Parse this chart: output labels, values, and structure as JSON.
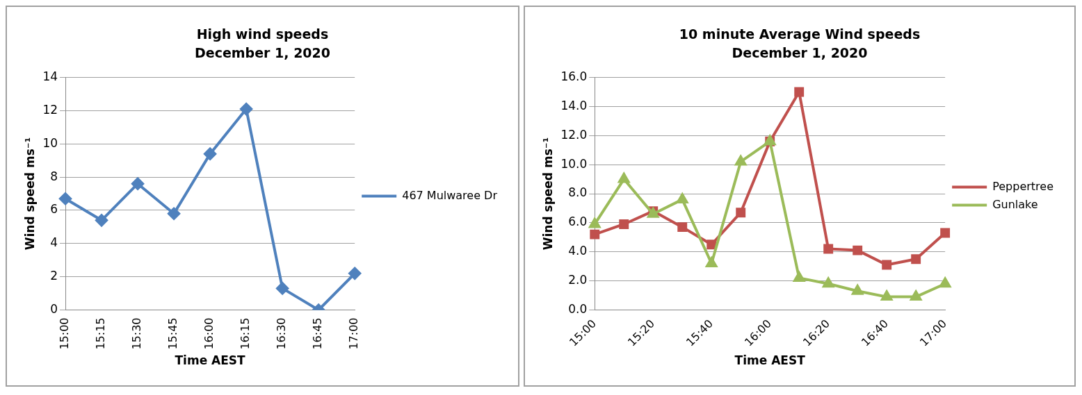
{
  "chart_data": [
    {
      "type": "line",
      "title": "High wind speeds",
      "subtitle": "December 1, 2020",
      "xlabel": "Time AEST",
      "ylabel": "Wind speed ms⁻¹",
      "categories": [
        "15:00",
        "15:15",
        "15:30",
        "15:45",
        "16:00",
        "16:15",
        "16:30",
        "16:45",
        "17:00"
      ],
      "series": [
        {
          "name": "467 Mulwaree Dr",
          "color": "#4f81bd",
          "marker": "diamond",
          "values": [
            6.7,
            5.4,
            7.6,
            5.8,
            9.4,
            12.1,
            1.3,
            0.0,
            2.2
          ]
        }
      ],
      "ylim": [
        0,
        14
      ],
      "yticks": [
        0,
        2,
        4,
        6,
        8,
        10,
        12,
        14
      ],
      "grid": "y",
      "legend": "right",
      "line_style": "solid"
    },
    {
      "type": "line",
      "title": "10 minute Average Wind speeds",
      "subtitle": "December 1, 2020",
      "xlabel": "Time AEST",
      "ylabel": "Wind speed ms⁻¹",
      "categories": [
        "15:00",
        null,
        "15:20",
        null,
        "15:40",
        null,
        "16:00",
        null,
        "16:20",
        null,
        "16:40",
        null,
        "17:00"
      ],
      "series": [
        {
          "name": "Peppertree",
          "color": "#c0504d",
          "marker": "square",
          "values": [
            5.2,
            5.9,
            6.8,
            5.7,
            4.5,
            6.7,
            11.6,
            15.0,
            4.2,
            4.1,
            3.1,
            3.5,
            5.3
          ]
        },
        {
          "name": "Gunlake",
          "color": "#9bbb59",
          "marker": "triangle",
          "values": [
            5.9,
            9.0,
            6.6,
            7.6,
            3.2,
            10.2,
            11.6,
            2.2,
            1.8,
            1.3,
            0.9,
            0.9,
            1.8
          ]
        }
      ],
      "ylim": [
        0,
        16
      ],
      "yticks": [
        {
          "value": 0,
          "label": "0.0"
        },
        {
          "value": 2,
          "label": "2.0"
        },
        {
          "value": 4,
          "label": "4.0"
        },
        {
          "value": 6,
          "label": "6.0"
        },
        {
          "value": 8,
          "label": "8.0"
        },
        {
          "value": 10,
          "label": "10.0"
        },
        {
          "value": 12,
          "label": "12.0"
        },
        {
          "value": 14,
          "label": "14.0"
        },
        {
          "value": 16,
          "label": "16.0"
        }
      ],
      "grid": "y",
      "legend": "right",
      "line_style": "solid"
    }
  ]
}
